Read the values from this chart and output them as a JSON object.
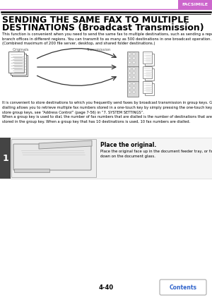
{
  "page_number": "4-40",
  "header_label": "FACSIMILE",
  "header_bar_color": "#cc66cc",
  "title_line1": "SENDING THE SAME FAX TO MULTIPLE",
  "title_line2": "DESTINATIONS (Broadcast Transmission)",
  "body_text1": "This function is convenient when you need to send the same fax to multiple\ndestinations, such as sending a report to branch offices in different regions.\nYou can transmit to as many as 500 destinations in one broadcast operation.\n(Combined maximum of 200 file server, desktop, and shared folder destinations.)",
  "diagram_label_originals": "Originals",
  "diagram_label_transmission": "Transmission",
  "body_text2": "It is convenient to store destinations to which you frequently send faxes by broadcast transmission in group keys. Group\ndialling allows you to retrieve multiple fax numbers stored in a one-touch key by simply pressing the one-touch key. To\nstore group keys, see “Address Control” (page 7-56) in “7. SYSTEM SETTINGS”.\nWhen a group key is used to dial, the number of fax numbers that are dialled is the number of destinations that are\nstored in the group key. When a group key that has 10 destinations is used, 10 fax numbers are dialled.",
  "step_number": "1",
  "step_title": "Place the original.",
  "step_text": "Place the original face up in the document feeder tray, or face\ndown on the document glass.",
  "contents_button_text": "Contents",
  "contents_button_color": "#3366cc",
  "bg_color": "#ffffff",
  "title_color": "#000000",
  "text_color": "#000000",
  "header_bar_color_light": "#cc66cc"
}
